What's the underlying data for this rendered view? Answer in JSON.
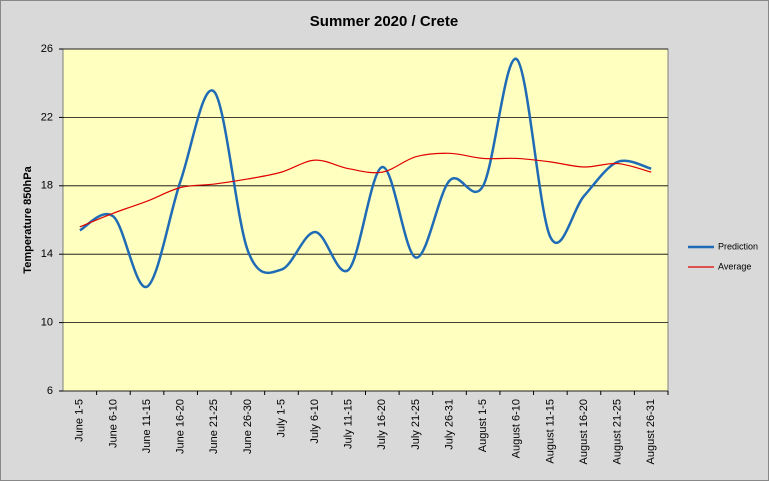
{
  "chart_data": {
    "type": "line",
    "title": "Summer 2020 / Crete",
    "y_label": "Temperature 850hPa",
    "categories": [
      "June 1-5",
      "June 6-10",
      "June 11-15",
      "June 16-20",
      "June 21-25",
      "June 26-30",
      "July 1-5",
      "July 6-10",
      "July 11-15",
      "July 16-20",
      "July 21-25",
      "July 26-31",
      "August 1-5",
      "August 6-10",
      "August 11-15",
      "August 16-20",
      "August 21-25",
      "August 26-31"
    ],
    "series": [
      {
        "name": "Prediction",
        "color": "#1f6bb5",
        "values": [
          15.4,
          16.2,
          12.1,
          18.3,
          23.5,
          14.2,
          13.1,
          15.3,
          13.1,
          19.1,
          13.8,
          18.3,
          18.0,
          25.4,
          15.0,
          17.4,
          19.4,
          19.0
        ]
      },
      {
        "name": "Average",
        "color": "#e00000",
        "values": [
          15.6,
          16.4,
          17.1,
          17.9,
          18.1,
          18.4,
          18.8,
          19.5,
          19.0,
          18.8,
          19.7,
          19.9,
          19.6,
          19.6,
          19.4,
          19.1,
          19.3,
          18.8
        ]
      }
    ],
    "ylim": [
      6,
      26
    ],
    "yticks": [
      6,
      10,
      14,
      18,
      22,
      26
    ],
    "grid": true,
    "legend": "right",
    "smooth": true
  }
}
